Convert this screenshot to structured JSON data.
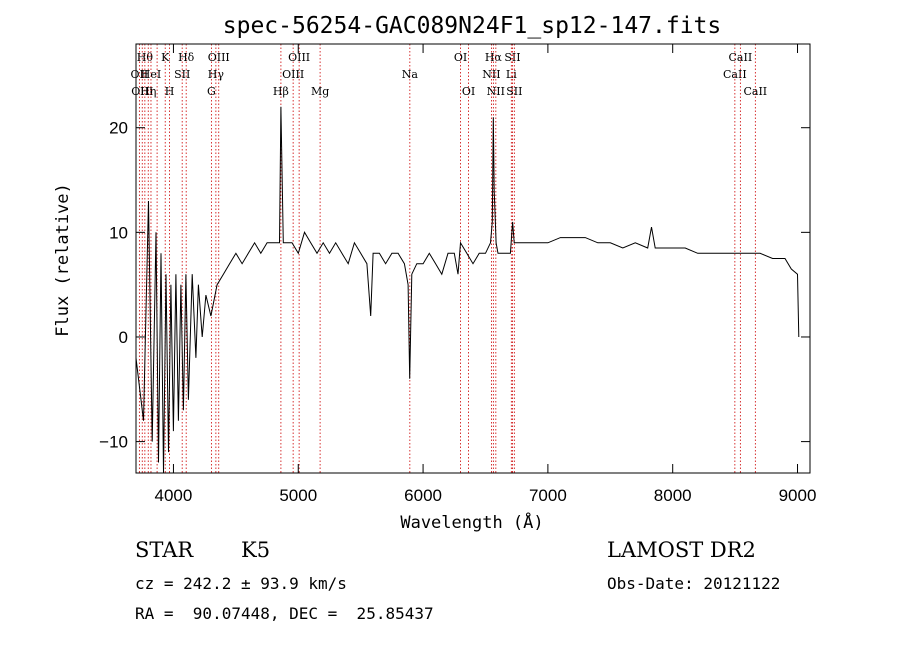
{
  "chart_data": {
    "type": "line",
    "title": "spec-56254-GAC089N24F1_sp12-147.fits",
    "xlabel": "Wavelength (Å)",
    "ylabel": "Flux (relative)",
    "xlim": [
      3700,
      9100
    ],
    "ylim": [
      -13,
      28
    ],
    "xticks": [
      4000,
      5000,
      6000,
      7000,
      8000,
      9000
    ],
    "yticks": [
      -10,
      0,
      10,
      20
    ],
    "grid": false,
    "legend": "none",
    "line_color": "#000000",
    "marker_color": "#cc0000",
    "series": [
      {
        "x": [
          3700,
          3760,
          3800,
          3830,
          3860,
          3880,
          3900,
          3920,
          3940,
          3960,
          3980,
          4000,
          4020,
          4040,
          4060,
          4080,
          4100,
          4120,
          4150,
          4180,
          4200,
          4230,
          4260,
          4300,
          4350,
          4400,
          4450,
          4500,
          4550,
          4600,
          4650,
          4700,
          4750,
          4800,
          4850,
          4861,
          4880,
          4950,
          5000,
          5050,
          5100,
          5150,
          5200,
          5250,
          5300,
          5350,
          5400,
          5450,
          5500,
          5550,
          5580,
          5600,
          5650,
          5700,
          5750,
          5800,
          5850,
          5880,
          5893,
          5910,
          5950,
          6000,
          6050,
          6100,
          6150,
          6200,
          6250,
          6280,
          6300,
          6350,
          6400,
          6450,
          6500,
          6540,
          6555,
          6563,
          6570,
          6585,
          6600,
          6650,
          6700,
          6717,
          6730,
          6750,
          6800,
          6850,
          6900,
          6950,
          7000,
          7100,
          7200,
          7300,
          7400,
          7500,
          7600,
          7700,
          7800,
          7830,
          7860,
          7900,
          8000,
          8100,
          8200,
          8300,
          8400,
          8500,
          8600,
          8700,
          8800,
          8900,
          8950,
          9000,
          9010
        ],
        "y": [
          -2,
          -8,
          13,
          -10,
          10,
          -12,
          8,
          -13,
          6,
          -11,
          5,
          -9,
          6,
          -8,
          5,
          -7,
          6,
          -6,
          6,
          -2,
          5,
          0,
          4,
          2,
          5,
          6,
          7,
          8,
          7,
          8,
          9,
          8,
          9,
          9,
          9,
          22,
          9,
          9,
          8,
          10,
          9,
          8,
          9,
          8,
          9,
          8,
          7,
          9,
          8,
          7,
          2,
          8,
          8,
          7,
          8,
          8,
          7,
          5,
          -4,
          6,
          7,
          7,
          8,
          7,
          6,
          8,
          8,
          6,
          9,
          8,
          7,
          8,
          8,
          9,
          11,
          21,
          14,
          9,
          8,
          8,
          8,
          11,
          9,
          9,
          9,
          9,
          9,
          9,
          9,
          9.5,
          9.5,
          9.5,
          9,
          9,
          8.5,
          9,
          8.5,
          10.5,
          8.5,
          8.5,
          8.5,
          8.5,
          8,
          8,
          8,
          8,
          8,
          8,
          7.5,
          7.5,
          6.5,
          6,
          0
        ]
      }
    ],
    "line_markers": [
      {
        "w": 3727,
        "label": "OII",
        "row": 1
      },
      {
        "w": 3750,
        "label": "OIII",
        "row": 2
      },
      {
        "w": 3771,
        "label": "Hθ",
        "row": 0
      },
      {
        "w": 3798,
        "label": "Hη",
        "row": 2
      },
      {
        "w": 3820,
        "label": "HeI",
        "row": 1
      },
      {
        "w": 3869,
        "label": "",
        "row": 0
      },
      {
        "w": 3934,
        "label": "K",
        "row": 0
      },
      {
        "w": 3969,
        "label": "H",
        "row": 2
      },
      {
        "w": 4070,
        "label": "SII",
        "row": 1
      },
      {
        "w": 4102,
        "label": "Hδ",
        "row": 0
      },
      {
        "w": 4304,
        "label": "G",
        "row": 2
      },
      {
        "w": 4340,
        "label": "Hγ",
        "row": 1
      },
      {
        "w": 4363,
        "label": "OIII",
        "row": 0
      },
      {
        "w": 4861,
        "label": "Hβ",
        "row": 2
      },
      {
        "w": 4959,
        "label": "OIII",
        "row": 1
      },
      {
        "w": 5007,
        "label": "OIII",
        "row": 0
      },
      {
        "w": 5175,
        "label": "Mg",
        "row": 2
      },
      {
        "w": 5894,
        "label": "Na",
        "row": 1
      },
      {
        "w": 6300,
        "label": "OI",
        "row": 0
      },
      {
        "w": 6364,
        "label": "OI",
        "row": 2
      },
      {
        "w": 6548,
        "label": "NII",
        "row": 1
      },
      {
        "w": 6563,
        "label": "Hα",
        "row": 0
      },
      {
        "w": 6583,
        "label": "NII",
        "row": 2
      },
      {
        "w": 6707,
        "label": "Li",
        "row": 1
      },
      {
        "w": 6716,
        "label": "SII",
        "row": 0
      },
      {
        "w": 6731,
        "label": "SII",
        "row": 2
      },
      {
        "w": 8498,
        "label": "CaII",
        "row": 1
      },
      {
        "w": 8542,
        "label": "CaII",
        "row": 0
      },
      {
        "w": 8662,
        "label": "CaII",
        "row": 2
      }
    ]
  },
  "info": {
    "class": "STAR",
    "subclass": "K5",
    "survey": "LAMOST DR2",
    "cz": "cz = 242.2 ± 93.9 km/s",
    "obs_date": "Obs-Date: 20121122",
    "radec": "RA =  90.07448, DEC =  25.85437"
  }
}
